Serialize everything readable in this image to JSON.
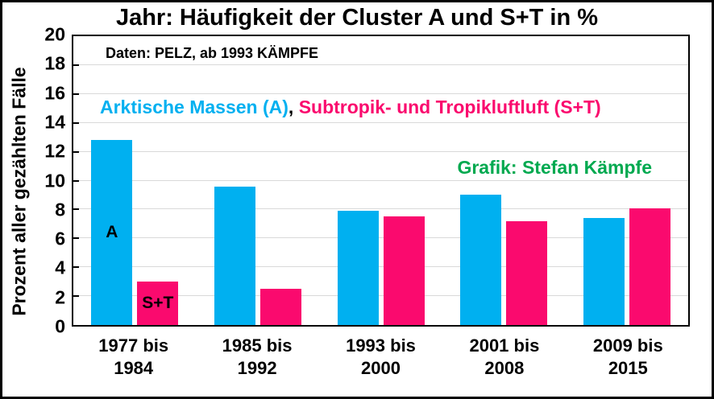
{
  "chart_data": {
    "type": "bar",
    "title": "Jahr: Häufigkeit der Cluster A und S+T in %",
    "ylabel": "Prozent aller gezählten Fälle",
    "xlabel": "",
    "categories": [
      "1977 bis 1984",
      "1985 bis 1992",
      "1993 bis 2000",
      "2001 bis 2008",
      "2009 bis 2015"
    ],
    "series": [
      {
        "key": "a",
        "name": "Arktische Massen (A)",
        "short_label": "A",
        "color": "#00B0F0",
        "values": [
          12.8,
          9.6,
          7.9,
          9.0,
          7.4
        ]
      },
      {
        "key": "st",
        "name": "Subtropik- und Tropikluftluft (S+T)",
        "short_label": "S+T",
        "color": "#FA0A6E",
        "values": [
          3.0,
          2.5,
          7.5,
          7.2,
          8.1
        ]
      }
    ],
    "ylim": [
      0,
      20
    ],
    "yticks": [
      0,
      2,
      4,
      6,
      8,
      10,
      12,
      14,
      16,
      18,
      20
    ],
    "grid": "horizontal",
    "legend_position": "inside-top"
  },
  "legend": {
    "separator": ", "
  },
  "annotations": {
    "source": "Daten: PELZ, ab 1993 KÄMPFE",
    "credit": "Grafik: Stefan Kämpfe",
    "credit_color": "#00A94F"
  }
}
